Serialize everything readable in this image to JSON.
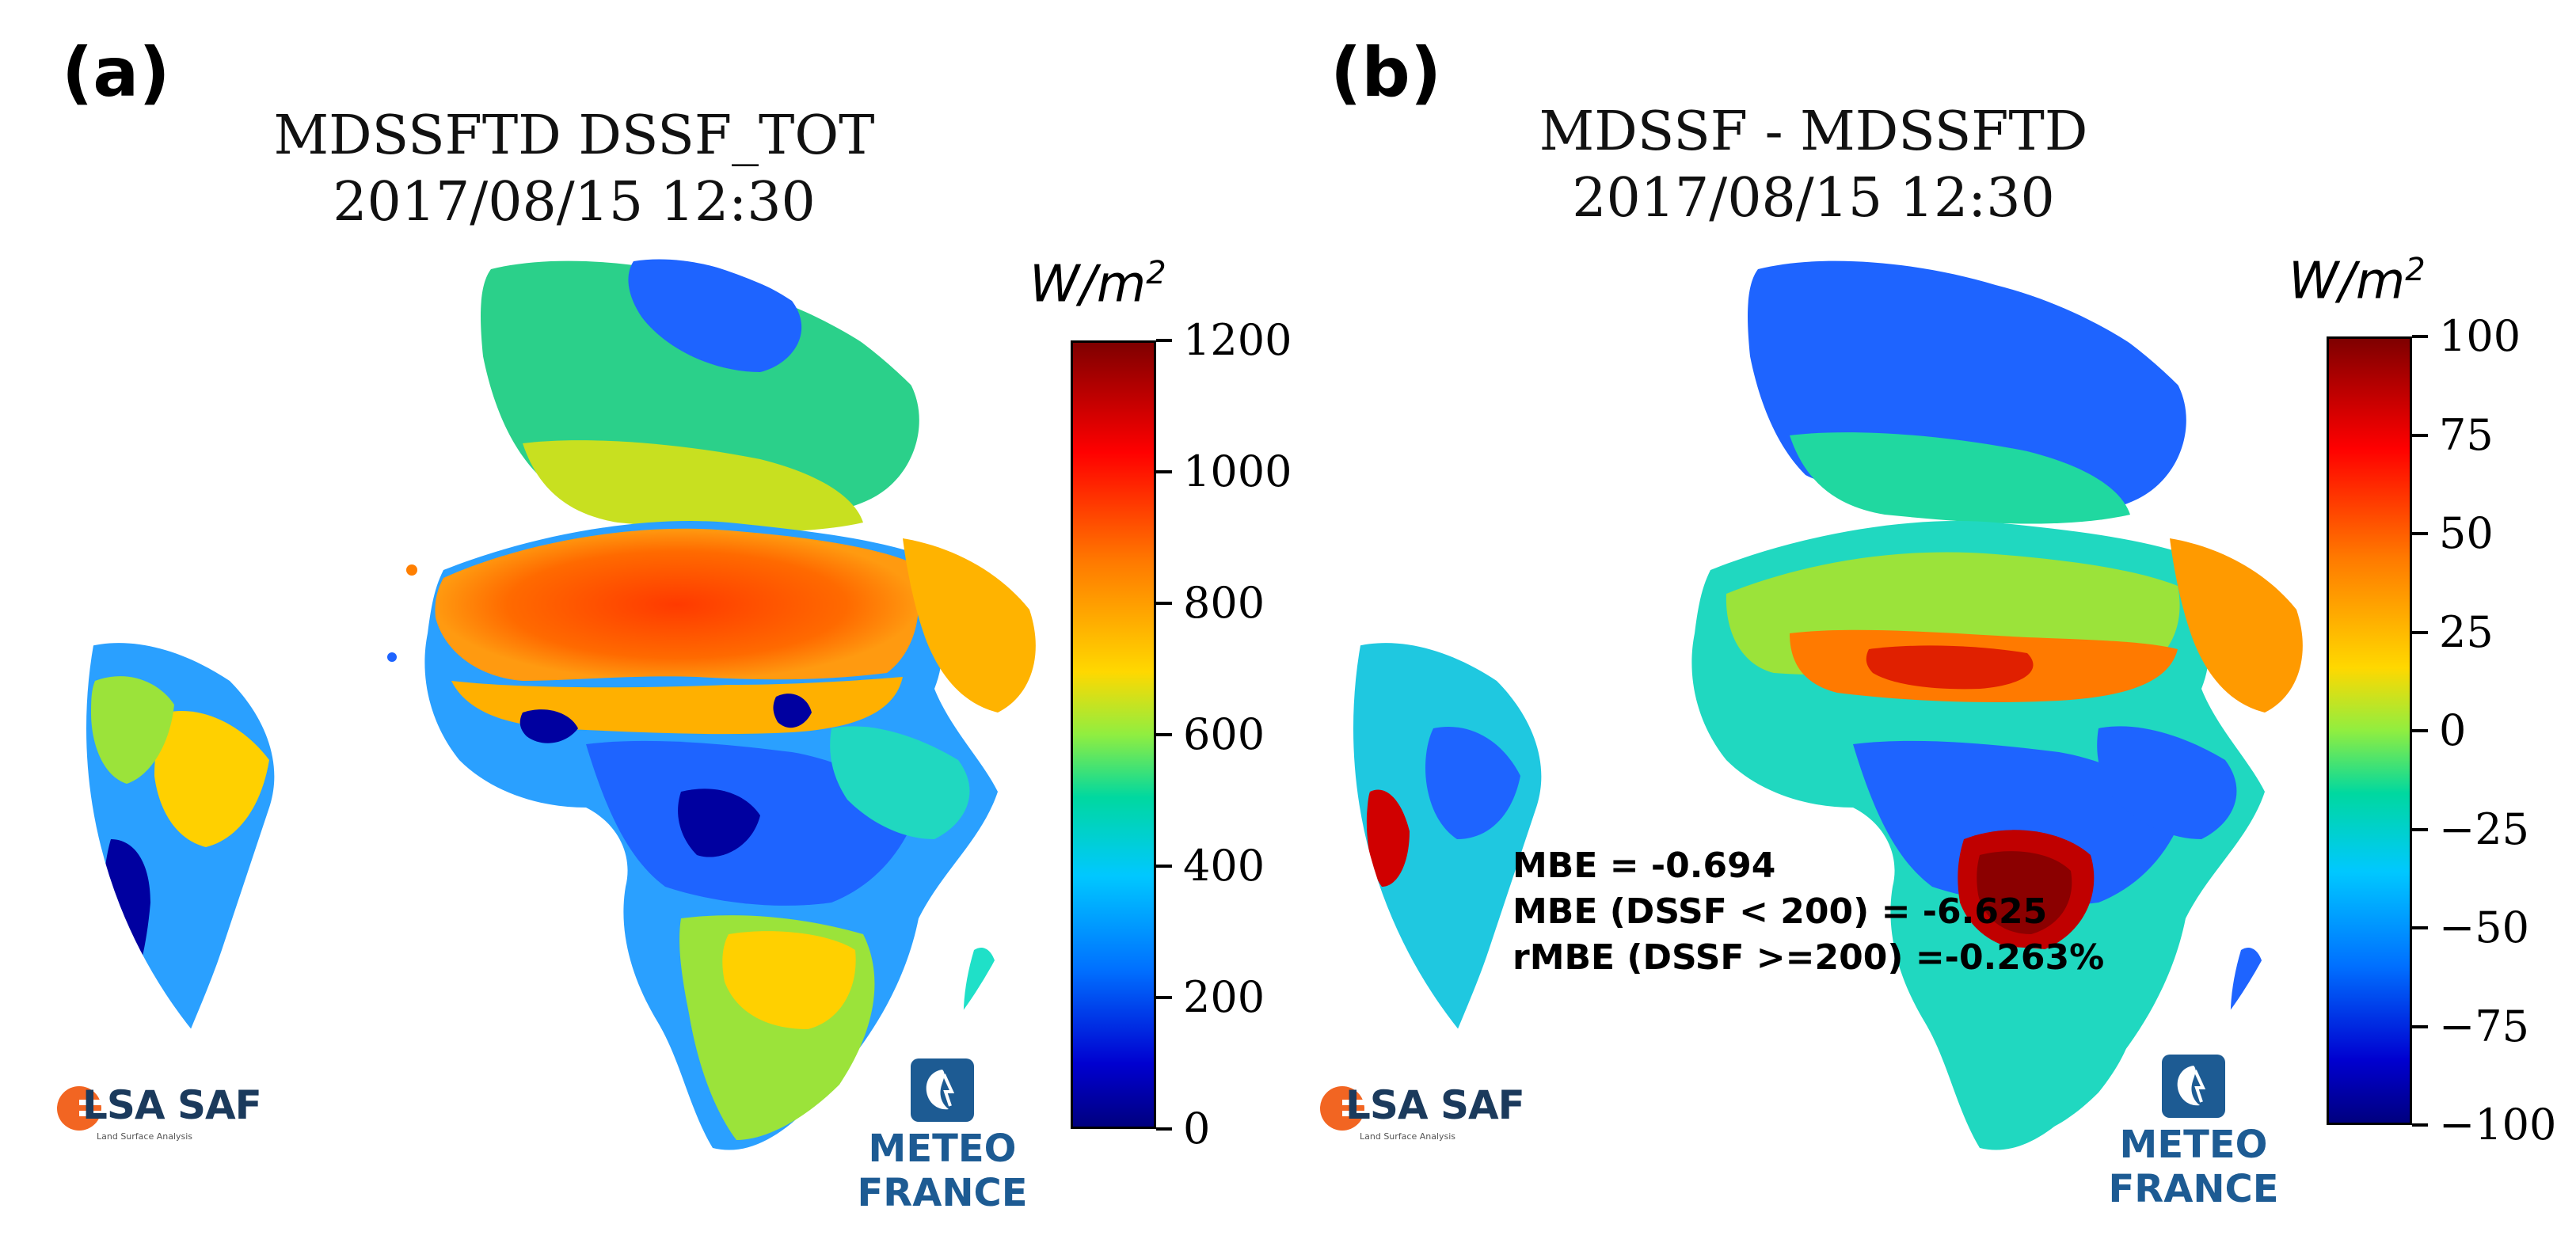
{
  "panels": [
    {
      "label": "(a)",
      "title_line1": "MDSSFTD DSSF_TOT",
      "title_line2": "2017/08/15 12:30",
      "colorbar": {
        "unit_base": "W/m",
        "unit_exp": "2",
        "min": 0,
        "max": 1200,
        "ticks": [
          "1200",
          "1000",
          "800",
          "600",
          "400",
          "200",
          "0"
        ],
        "tick_values": [
          1200,
          1000,
          800,
          600,
          400,
          200,
          0
        ],
        "colormap": "jet"
      }
    },
    {
      "label": "(b)",
      "title_line1": "MDSSF - MDSSFTD",
      "title_line2": "2017/08/15 12:30",
      "colorbar": {
        "unit_base": "W/m",
        "unit_exp": "2",
        "min": -100,
        "max": 100,
        "ticks": [
          "100",
          "75",
          "50",
          "25",
          "0",
          "−25",
          "−50",
          "−75",
          "−100"
        ],
        "tick_values": [
          100,
          75,
          50,
          25,
          0,
          -25,
          -50,
          -75,
          -100
        ],
        "colormap": "jet"
      },
      "stats": {
        "mbe": "MBE = -0.694",
        "mbe_low": "MBE (DSSF < 200) = -6.625",
        "rmbe_high": "rMBE (DSSF >=200) =-0.263%"
      }
    }
  ],
  "logos": {
    "lsa_saf": "LSA SAF",
    "lsa_saf_sub": "Land Surface Analysis",
    "meteo_line1": "METEO",
    "meteo_line2": "FRANCE",
    "lsa_color": "#f26522",
    "meteo_color": "#1d5b93"
  },
  "map_colors": {
    "dark_red": "#8b0000",
    "red": "#ff2a00",
    "orange": "#ff7f00",
    "yellow": "#ffe000",
    "green": "#7fdc3c",
    "cyan": "#1fe0c8",
    "blue": "#1e64ff",
    "dark_blue": "#0000a0"
  }
}
